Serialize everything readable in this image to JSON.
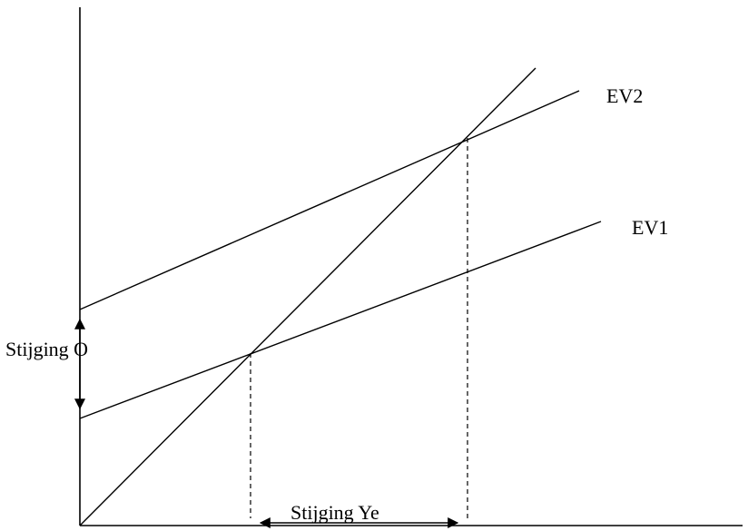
{
  "labels": {
    "ev2": "EV2",
    "ev1": "EV1",
    "rise_o": "Stijging O",
    "rise_ye": "Stijging Ye"
  },
  "colors": {
    "line": "#000000",
    "background": "#ffffff"
  }
}
